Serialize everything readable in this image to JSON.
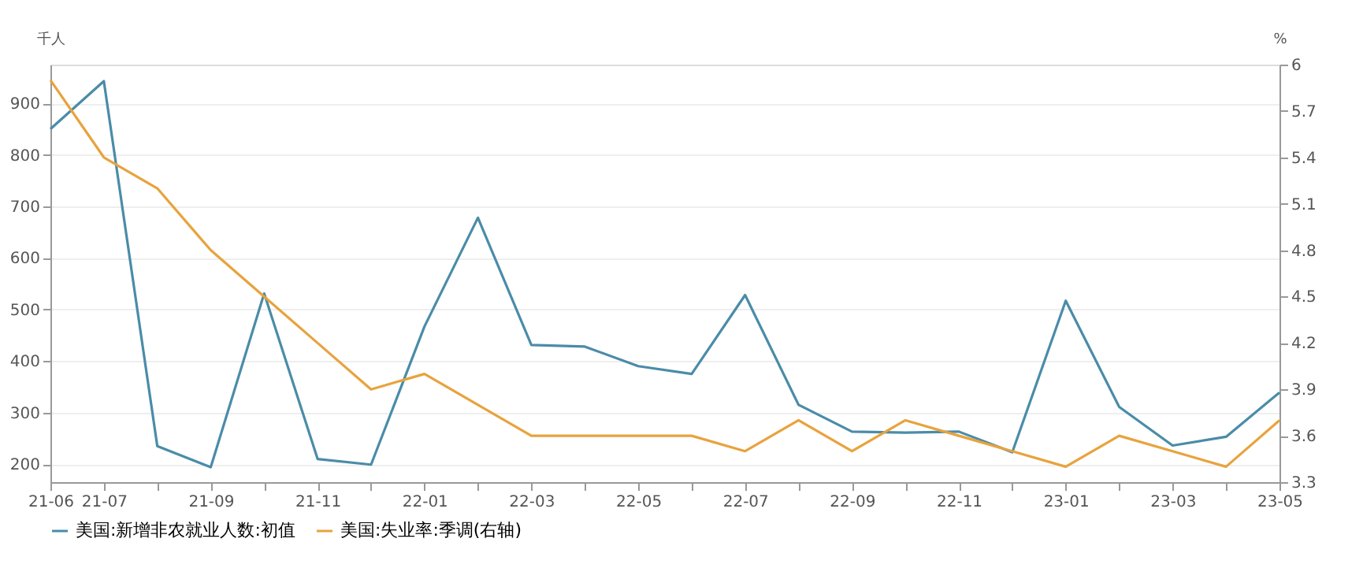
{
  "chart_data": {
    "type": "line",
    "ylabel": "千人",
    "y2label": "%",
    "categories": [
      "21-06",
      "21-07",
      null,
      "21-09",
      null,
      "21-11",
      null,
      "22-01",
      null,
      "22-03",
      null,
      "22-05",
      null,
      "22-07",
      null,
      "22-09",
      null,
      "22-11",
      null,
      "23-01",
      null,
      "23-03",
      null,
      "23-05"
    ],
    "series": [
      {
        "name": "美国:新增非农就业人数:初值",
        "color": "#4a8ca8",
        "values": [
          850,
          943,
          235,
          194,
          531,
          210,
          199,
          467,
          678,
          431,
          428,
          390,
          375,
          528,
          315,
          263,
          261,
          263,
          223,
          517,
          311,
          236,
          253,
          339
        ]
      },
      {
        "name": "美国:失业率:季调(右轴)",
        "color": "#e8a33d",
        "axis": "y2",
        "values": [
          5.9,
          5.4,
          5.2,
          4.8,
          4.5,
          4.2,
          3.9,
          4.0,
          3.8,
          3.6,
          3.6,
          3.6,
          3.6,
          3.5,
          3.7,
          3.5,
          3.7,
          3.6,
          3.5,
          3.4,
          3.6,
          3.5,
          3.4,
          3.7
        ]
      }
    ],
    "ylim": [
      165,
      975
    ],
    "yticks": [
      200,
      300,
      400,
      500,
      600,
      700,
      800,
      900
    ],
    "y2lim": [
      3.3,
      6
    ],
    "y2ticks": [
      3.3,
      3.6,
      3.9,
      4.2,
      4.5,
      4.8,
      5.1,
      5.4,
      5.7,
      6
    ],
    "grid": "y",
    "legend": "bottom",
    "marker": "none",
    "line_style": "solid"
  }
}
